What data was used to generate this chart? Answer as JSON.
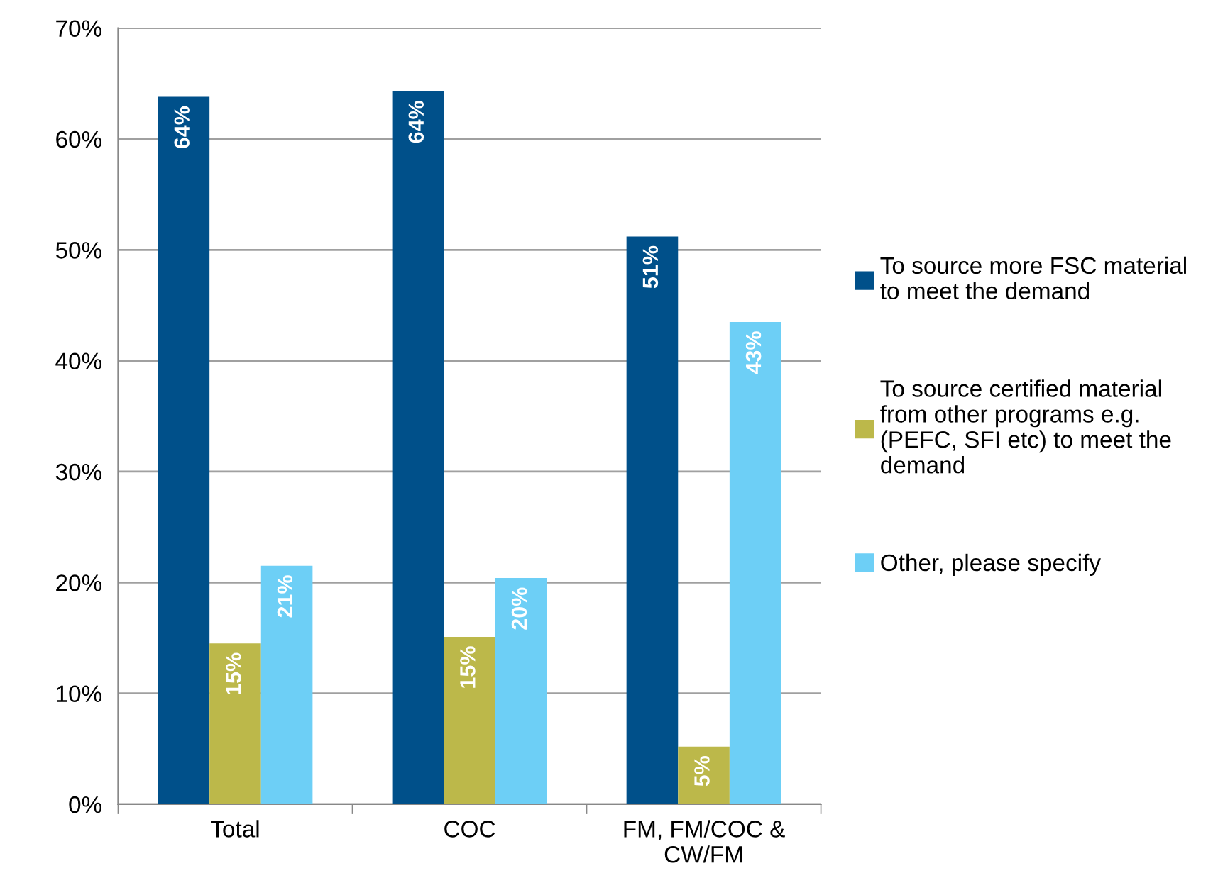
{
  "chart_data": {
    "type": "bar",
    "categories": [
      "Total",
      "COC",
      "FM, FM/COC &\nCW/FM"
    ],
    "series": [
      {
        "name": "To source more FSC material\nto meet the demand",
        "color": "#00508a",
        "values": [
          63.8,
          64.3,
          51.2
        ],
        "value_labels": [
          "64%",
          "64%",
          "51%"
        ]
      },
      {
        "name": "To source certified material\nfrom other programs e.g.\n(PEFC, SFI etc) to meet the\ndemand",
        "color": "#bcb84a",
        "values": [
          14.5,
          15.1,
          5.2
        ],
        "value_labels": [
          "15%",
          "15%",
          "5%"
        ]
      },
      {
        "name": "Other, please specify",
        "color": "#6dcff6",
        "values": [
          21.5,
          20.4,
          43.5
        ],
        "value_labels": [
          "21%",
          "20%",
          "43%"
        ]
      }
    ],
    "ylim": [
      0,
      70
    ],
    "yticks": [
      {
        "value": 0,
        "label": "0%"
      },
      {
        "value": 10,
        "label": "10%"
      },
      {
        "value": 20,
        "label": "20%"
      },
      {
        "value": 30,
        "label": "30%"
      },
      {
        "value": 40,
        "label": "40%"
      },
      {
        "value": 50,
        "label": "50%"
      },
      {
        "value": 60,
        "label": "60%"
      },
      {
        "value": 70,
        "label": "70%"
      }
    ],
    "grid": "y",
    "legend": "right"
  }
}
